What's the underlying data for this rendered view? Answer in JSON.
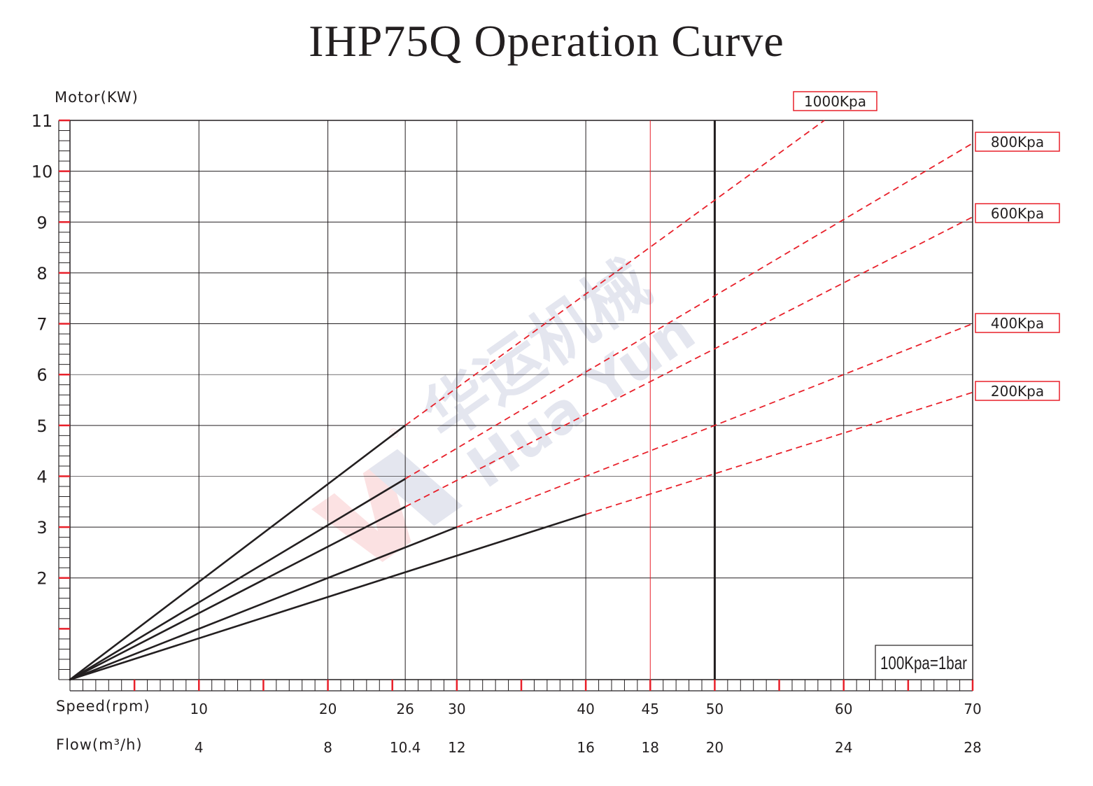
{
  "title": "IHP75Q Operation Curve",
  "note": "100Kpa=1bar",
  "watermark": {
    "cn": "华运机械",
    "en": "Hua Yun",
    "reg": "®"
  },
  "colors": {
    "grid": "#231f20",
    "red": "#e8202a",
    "text": "#231f20"
  },
  "chart_data": {
    "type": "line",
    "title": "IHP75Q Operation Curve",
    "ylabel": "Motor(KW)",
    "xlabel": "Speed(rpm)",
    "x2label": "Flow(m³/h)",
    "xlim": [
      0,
      70
    ],
    "ylim": [
      0,
      11
    ],
    "grid": true,
    "y_ticks": [
      2,
      3,
      4,
      5,
      6,
      7,
      8,
      9,
      10,
      11
    ],
    "x_ticks": [
      {
        "speed": "10",
        "flow": "4"
      },
      {
        "speed": "20",
        "flow": "8"
      },
      {
        "speed": "26",
        "flow": "10.4"
      },
      {
        "speed": "30",
        "flow": "12"
      },
      {
        "speed": "40",
        "flow": "16"
      },
      {
        "speed": "45",
        "flow": "18"
      },
      {
        "speed": "50",
        "flow": "20"
      },
      {
        "speed": "60",
        "flow": "24"
      },
      {
        "speed": "70",
        "flow": "28"
      }
    ],
    "grid_x": [
      10,
      20,
      26,
      30,
      40,
      45,
      50,
      60,
      70
    ],
    "grid_y": [
      2,
      3,
      4,
      5,
      6,
      7,
      8,
      9,
      10,
      11
    ],
    "highlight_x_red": 45,
    "highlight_x_bold": 50,
    "series": [
      {
        "name": "1000Kpa",
        "solid": [
          [
            0,
            0
          ],
          [
            26,
            5
          ]
        ],
        "dashed": [
          [
            26,
            5
          ],
          [
            58.5,
            11
          ]
        ]
      },
      {
        "name": "800Kpa",
        "solid": [
          [
            0,
            0
          ],
          [
            26,
            3.95
          ]
        ],
        "dashed": [
          [
            26,
            3.95
          ],
          [
            70,
            10.55
          ]
        ]
      },
      {
        "name": "600Kpa",
        "solid": [
          [
            0,
            0
          ],
          [
            26,
            3.4
          ]
        ],
        "dashed": [
          [
            26,
            3.4
          ],
          [
            70,
            9.1
          ]
        ]
      },
      {
        "name": "400Kpa",
        "solid": [
          [
            0,
            0
          ],
          [
            30,
            3
          ]
        ],
        "dashed": [
          [
            30,
            3
          ],
          [
            70,
            7
          ]
        ]
      },
      {
        "name": "200Kpa",
        "solid": [
          [
            0,
            0
          ],
          [
            40,
            3.25
          ]
        ],
        "dashed": [
          [
            40,
            3.25
          ],
          [
            70,
            5.65
          ]
        ]
      }
    ]
  }
}
